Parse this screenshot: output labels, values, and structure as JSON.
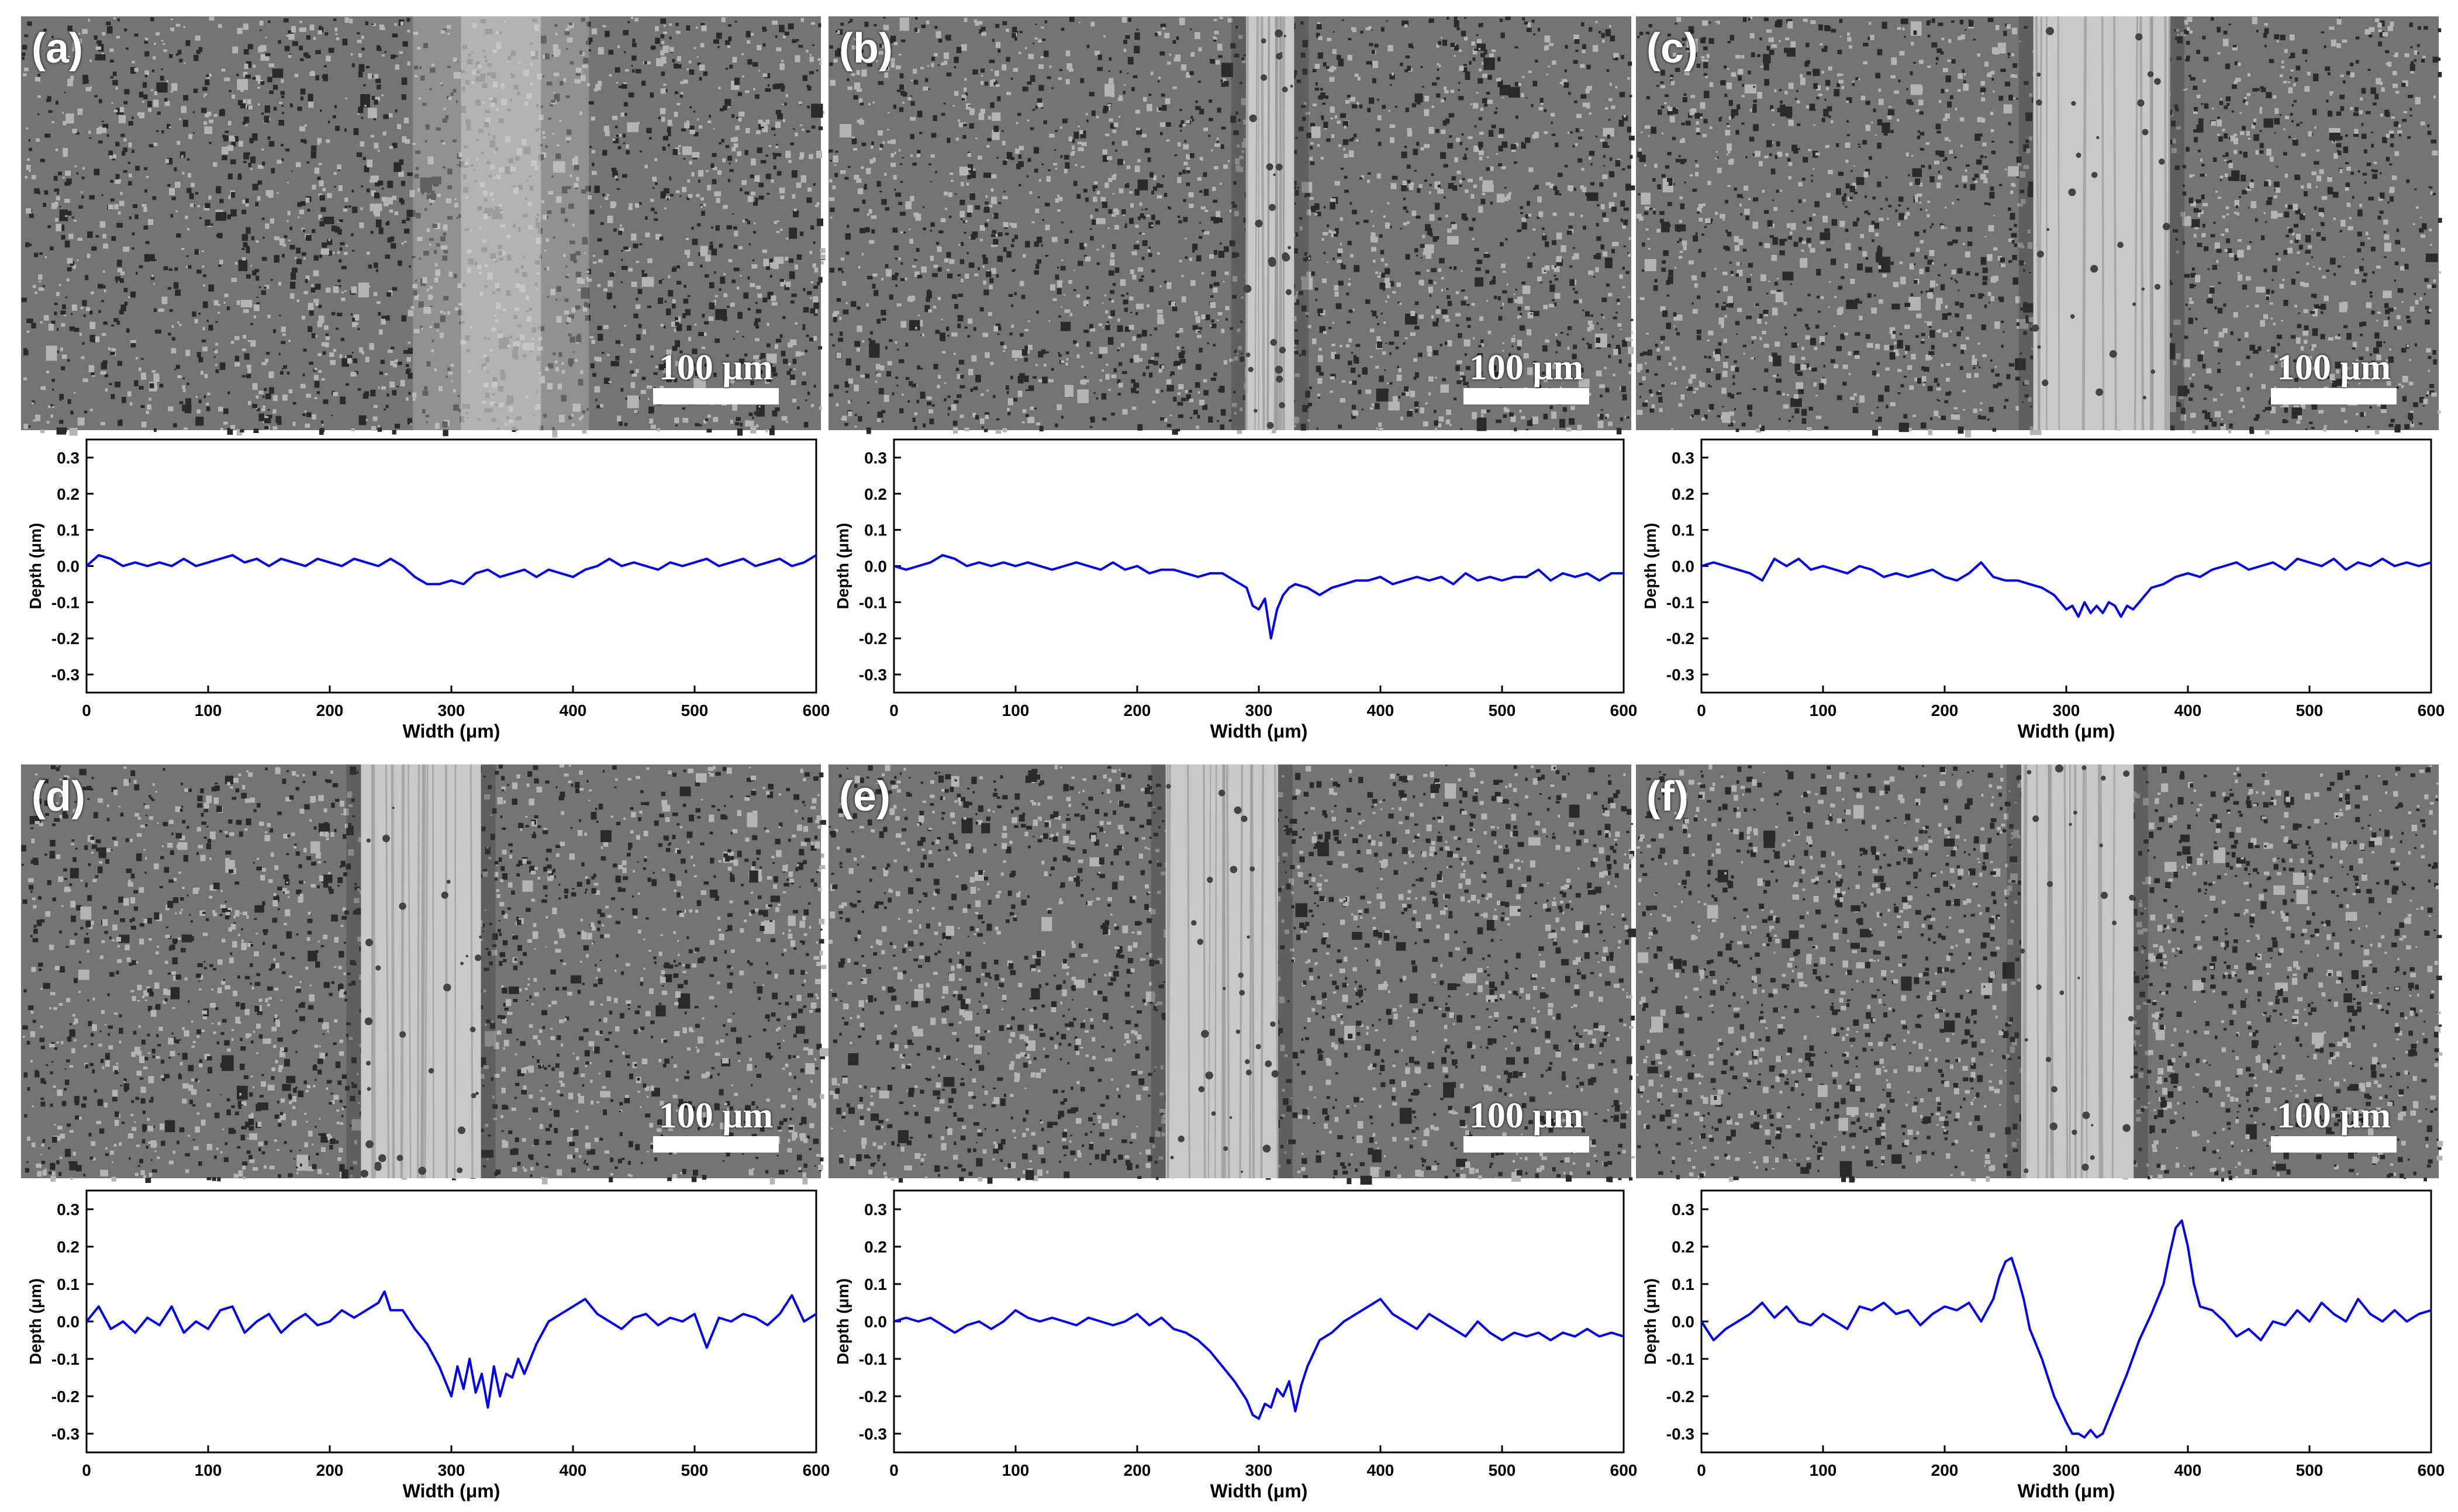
{
  "scale_label": "100 μm",
  "colors": {
    "line": "#0000ff",
    "frame": "#000000"
  },
  "chart_data": [
    {
      "type": "line",
      "panel": "(a)",
      "xlabel": "Width (μm)",
      "ylabel": "Depth (μm)",
      "xlim": [
        0,
        600
      ],
      "ylim": [
        -0.35,
        0.35
      ],
      "xticks": [
        "0",
        "100",
        "200",
        "300",
        "400",
        "500",
        "600"
      ],
      "yticks": [
        "0.3",
        "0.2",
        "0.1",
        "0.0",
        "-0.1",
        "-0.2",
        "-0.3"
      ],
      "series": [
        {
          "color": "#0000ff",
          "x": [
            0,
            10,
            20,
            30,
            40,
            50,
            60,
            70,
            80,
            90,
            100,
            110,
            120,
            130,
            140,
            150,
            160,
            170,
            180,
            190,
            200,
            210,
            220,
            230,
            240,
            250,
            260,
            270,
            280,
            290,
            300,
            310,
            320,
            330,
            340,
            350,
            360,
            370,
            380,
            390,
            400,
            410,
            420,
            430,
            440,
            450,
            460,
            470,
            480,
            490,
            500,
            510,
            520,
            530,
            540,
            550,
            560,
            570,
            580,
            590,
            600
          ],
          "y": [
            0.0,
            0.03,
            0.02,
            0.0,
            0.01,
            0.0,
            0.01,
            0.0,
            0.02,
            0.0,
            0.01,
            0.02,
            0.03,
            0.01,
            0.02,
            0.0,
            0.02,
            0.01,
            0.0,
            0.02,
            0.01,
            0.0,
            0.02,
            0.01,
            0.0,
            0.02,
            0.0,
            -0.03,
            -0.05,
            -0.05,
            -0.04,
            -0.05,
            -0.02,
            -0.01,
            -0.03,
            -0.02,
            -0.01,
            -0.03,
            -0.01,
            -0.02,
            -0.03,
            -0.01,
            0.0,
            0.02,
            0.0,
            0.01,
            0.0,
            -0.01,
            0.01,
            0.0,
            0.01,
            0.02,
            0.0,
            0.01,
            0.02,
            0.0,
            0.01,
            0.02,
            0.0,
            0.01,
            0.03
          ]
        }
      ]
    },
    {
      "type": "line",
      "panel": "(b)",
      "xlabel": "Width (μm)",
      "ylabel": "Depth (μm)",
      "xlim": [
        0,
        600
      ],
      "ylim": [
        -0.35,
        0.35
      ],
      "xticks": [
        "0",
        "100",
        "200",
        "300",
        "400",
        "500",
        "600"
      ],
      "yticks": [
        "0.3",
        "0.2",
        "0.1",
        "0.0",
        "-0.1",
        "-0.2",
        "-0.3"
      ],
      "series": [
        {
          "color": "#0000ff",
          "x": [
            0,
            10,
            20,
            30,
            40,
            50,
            60,
            70,
            80,
            90,
            100,
            110,
            120,
            130,
            140,
            150,
            160,
            170,
            180,
            190,
            200,
            210,
            220,
            230,
            240,
            250,
            260,
            270,
            280,
            290,
            295,
            300,
            305,
            310,
            315,
            320,
            325,
            330,
            340,
            350,
            360,
            370,
            380,
            390,
            400,
            410,
            420,
            430,
            440,
            450,
            460,
            470,
            480,
            490,
            500,
            510,
            520,
            530,
            540,
            550,
            560,
            570,
            580,
            590,
            600
          ],
          "y": [
            0.0,
            -0.01,
            0.0,
            0.01,
            0.03,
            0.02,
            0.0,
            0.01,
            0.0,
            0.01,
            0.0,
            0.01,
            0.0,
            -0.01,
            0.0,
            0.01,
            0.0,
            -0.01,
            0.01,
            -0.01,
            0.0,
            -0.02,
            -0.01,
            -0.01,
            -0.02,
            -0.03,
            -0.02,
            -0.02,
            -0.04,
            -0.06,
            -0.11,
            -0.12,
            -0.09,
            -0.2,
            -0.12,
            -0.08,
            -0.06,
            -0.05,
            -0.06,
            -0.08,
            -0.06,
            -0.05,
            -0.04,
            -0.04,
            -0.03,
            -0.05,
            -0.04,
            -0.03,
            -0.04,
            -0.03,
            -0.05,
            -0.02,
            -0.04,
            -0.03,
            -0.04,
            -0.03,
            -0.03,
            -0.01,
            -0.04,
            -0.02,
            -0.03,
            -0.02,
            -0.04,
            -0.02,
            -0.02
          ]
        }
      ]
    },
    {
      "type": "line",
      "panel": "(c)",
      "xlabel": "Width (μm)",
      "ylabel": "Depth (μm)",
      "xlim": [
        0,
        600
      ],
      "ylim": [
        -0.35,
        0.35
      ],
      "xticks": [
        "0",
        "100",
        "200",
        "300",
        "400",
        "500",
        "600"
      ],
      "yticks": [
        "0.3",
        "0.2",
        "0.1",
        "0.0",
        "-0.1",
        "-0.2",
        "-0.3"
      ],
      "series": [
        {
          "color": "#0000ff",
          "x": [
            0,
            10,
            20,
            30,
            40,
            50,
            60,
            70,
            80,
            90,
            100,
            110,
            120,
            130,
            140,
            150,
            160,
            170,
            180,
            190,
            200,
            210,
            220,
            230,
            240,
            250,
            260,
            270,
            280,
            290,
            300,
            305,
            310,
            315,
            320,
            325,
            330,
            335,
            340,
            345,
            350,
            355,
            360,
            370,
            380,
            390,
            400,
            410,
            420,
            430,
            440,
            450,
            460,
            470,
            480,
            490,
            500,
            510,
            520,
            530,
            540,
            550,
            560,
            570,
            580,
            590,
            600
          ],
          "y": [
            0.0,
            0.01,
            0.0,
            -0.01,
            -0.02,
            -0.04,
            0.02,
            0.0,
            0.02,
            -0.01,
            0.0,
            -0.01,
            -0.02,
            0.0,
            -0.01,
            -0.03,
            -0.02,
            -0.03,
            -0.02,
            -0.01,
            -0.03,
            -0.04,
            -0.02,
            0.01,
            -0.03,
            -0.04,
            -0.04,
            -0.05,
            -0.06,
            -0.08,
            -0.12,
            -0.11,
            -0.14,
            -0.1,
            -0.13,
            -0.11,
            -0.13,
            -0.1,
            -0.11,
            -0.14,
            -0.11,
            -0.12,
            -0.1,
            -0.06,
            -0.05,
            -0.03,
            -0.02,
            -0.03,
            -0.01,
            0.0,
            0.01,
            -0.01,
            0.0,
            0.01,
            -0.01,
            0.02,
            0.01,
            0.0,
            0.02,
            -0.01,
            0.01,
            0.0,
            0.02,
            0.0,
            0.01,
            0.0,
            0.01
          ]
        }
      ]
    },
    {
      "type": "line",
      "panel": "(d)",
      "xlabel": "Width (μm)",
      "ylabel": "Depth (μm)",
      "xlim": [
        0,
        600
      ],
      "ylim": [
        -0.35,
        0.35
      ],
      "xticks": [
        "0",
        "100",
        "200",
        "300",
        "400",
        "500",
        "600"
      ],
      "yticks": [
        "0.3",
        "0.2",
        "0.1",
        "0.0",
        "-0.1",
        "-0.2",
        "-0.3"
      ],
      "series": [
        {
          "color": "#0000ff",
          "x": [
            0,
            10,
            20,
            30,
            40,
            50,
            60,
            70,
            80,
            90,
            100,
            110,
            120,
            130,
            140,
            150,
            160,
            170,
            180,
            190,
            200,
            210,
            220,
            230,
            240,
            245,
            250,
            260,
            270,
            280,
            290,
            300,
            305,
            310,
            315,
            320,
            325,
            330,
            335,
            340,
            345,
            350,
            355,
            360,
            370,
            380,
            390,
            400,
            410,
            420,
            430,
            440,
            450,
            460,
            470,
            480,
            490,
            500,
            510,
            520,
            530,
            540,
            550,
            560,
            570,
            580,
            590,
            600
          ],
          "y": [
            0.0,
            0.04,
            -0.02,
            0.0,
            -0.03,
            0.01,
            -0.01,
            0.04,
            -0.03,
            0.0,
            -0.02,
            0.03,
            0.04,
            -0.03,
            0.0,
            0.02,
            -0.03,
            0.0,
            0.02,
            -0.01,
            0.0,
            0.03,
            0.01,
            0.03,
            0.05,
            0.08,
            0.03,
            0.03,
            -0.02,
            -0.06,
            -0.12,
            -0.2,
            -0.12,
            -0.18,
            -0.1,
            -0.19,
            -0.14,
            -0.23,
            -0.12,
            -0.2,
            -0.14,
            -0.15,
            -0.1,
            -0.14,
            -0.06,
            0.0,
            0.02,
            0.04,
            0.06,
            0.02,
            0.0,
            -0.02,
            0.01,
            0.02,
            -0.01,
            0.01,
            0.0,
            0.02,
            -0.07,
            0.01,
            0.0,
            0.02,
            0.01,
            -0.01,
            0.02,
            0.07,
            0.0,
            0.02
          ]
        }
      ]
    },
    {
      "type": "line",
      "panel": "(e)",
      "xlabel": "Width (μm)",
      "ylabel": "Depth (μm)",
      "xlim": [
        0,
        600
      ],
      "ylim": [
        -0.35,
        0.35
      ],
      "xticks": [
        "0",
        "100",
        "200",
        "300",
        "400",
        "500",
        "600"
      ],
      "yticks": [
        "0.3",
        "0.2",
        "0.1",
        "0.0",
        "-0.1",
        "-0.2",
        "-0.3"
      ],
      "series": [
        {
          "color": "#0000ff",
          "x": [
            0,
            10,
            20,
            30,
            40,
            50,
            60,
            70,
            80,
            90,
            100,
            110,
            120,
            130,
            140,
            150,
            160,
            170,
            180,
            190,
            200,
            210,
            220,
            230,
            240,
            250,
            260,
            270,
            280,
            290,
            295,
            300,
            305,
            310,
            315,
            320,
            325,
            330,
            335,
            340,
            350,
            360,
            370,
            380,
            390,
            400,
            410,
            420,
            430,
            440,
            450,
            460,
            470,
            480,
            490,
            500,
            510,
            520,
            530,
            540,
            550,
            560,
            570,
            580,
            590,
            600
          ],
          "y": [
            0.0,
            0.01,
            0.0,
            0.01,
            -0.01,
            -0.03,
            -0.01,
            0.0,
            -0.02,
            0.0,
            0.03,
            0.01,
            0.0,
            0.01,
            0.0,
            -0.01,
            0.01,
            0.0,
            -0.01,
            0.0,
            0.02,
            -0.01,
            0.01,
            -0.02,
            -0.03,
            -0.05,
            -0.08,
            -0.12,
            -0.16,
            -0.21,
            -0.25,
            -0.26,
            -0.22,
            -0.23,
            -0.18,
            -0.2,
            -0.16,
            -0.24,
            -0.17,
            -0.12,
            -0.05,
            -0.03,
            0.0,
            0.02,
            0.04,
            0.06,
            0.02,
            0.0,
            -0.02,
            0.02,
            0.0,
            -0.02,
            -0.04,
            0.0,
            -0.03,
            -0.05,
            -0.03,
            -0.04,
            -0.03,
            -0.05,
            -0.03,
            -0.04,
            -0.02,
            -0.04,
            -0.03,
            -0.04
          ]
        }
      ]
    },
    {
      "type": "line",
      "panel": "(f)",
      "xlabel": "Width (μm)",
      "ylabel": "Depth (μm)",
      "xlim": [
        0,
        600
      ],
      "ylim": [
        -0.35,
        0.35
      ],
      "xticks": [
        "0",
        "100",
        "200",
        "300",
        "400",
        "500",
        "600"
      ],
      "yticks": [
        "0.3",
        "0.2",
        "0.1",
        "0.0",
        "-0.1",
        "-0.2",
        "-0.3"
      ],
      "series": [
        {
          "color": "#0000ff",
          "x": [
            0,
            10,
            20,
            30,
            40,
            50,
            60,
            70,
            80,
            90,
            100,
            110,
            120,
            130,
            140,
            150,
            160,
            170,
            180,
            190,
            200,
            210,
            220,
            230,
            240,
            245,
            250,
            255,
            260,
            265,
            270,
            280,
            290,
            300,
            305,
            310,
            315,
            320,
            325,
            330,
            335,
            340,
            350,
            360,
            370,
            380,
            385,
            390,
            395,
            400,
            405,
            410,
            420,
            430,
            440,
            450,
            460,
            470,
            480,
            490,
            500,
            510,
            520,
            530,
            540,
            550,
            560,
            570,
            580,
            590,
            600
          ],
          "y": [
            0.0,
            -0.05,
            -0.02,
            0.0,
            0.02,
            0.05,
            0.01,
            0.04,
            0.0,
            -0.01,
            0.02,
            0.0,
            -0.02,
            0.04,
            0.03,
            0.05,
            0.02,
            0.03,
            -0.01,
            0.02,
            0.04,
            0.03,
            0.05,
            0.0,
            0.06,
            0.12,
            0.16,
            0.17,
            0.12,
            0.06,
            -0.02,
            -0.1,
            -0.2,
            -0.27,
            -0.3,
            -0.3,
            -0.31,
            -0.29,
            -0.31,
            -0.3,
            -0.26,
            -0.22,
            -0.14,
            -0.05,
            0.02,
            0.1,
            0.18,
            0.25,
            0.27,
            0.2,
            0.1,
            0.04,
            0.03,
            0.0,
            -0.04,
            -0.02,
            -0.05,
            0.0,
            -0.01,
            0.03,
            0.0,
            0.05,
            0.02,
            0.0,
            0.06,
            0.02,
            0.0,
            0.03,
            0.0,
            0.02,
            0.03
          ]
        }
      ]
    }
  ]
}
